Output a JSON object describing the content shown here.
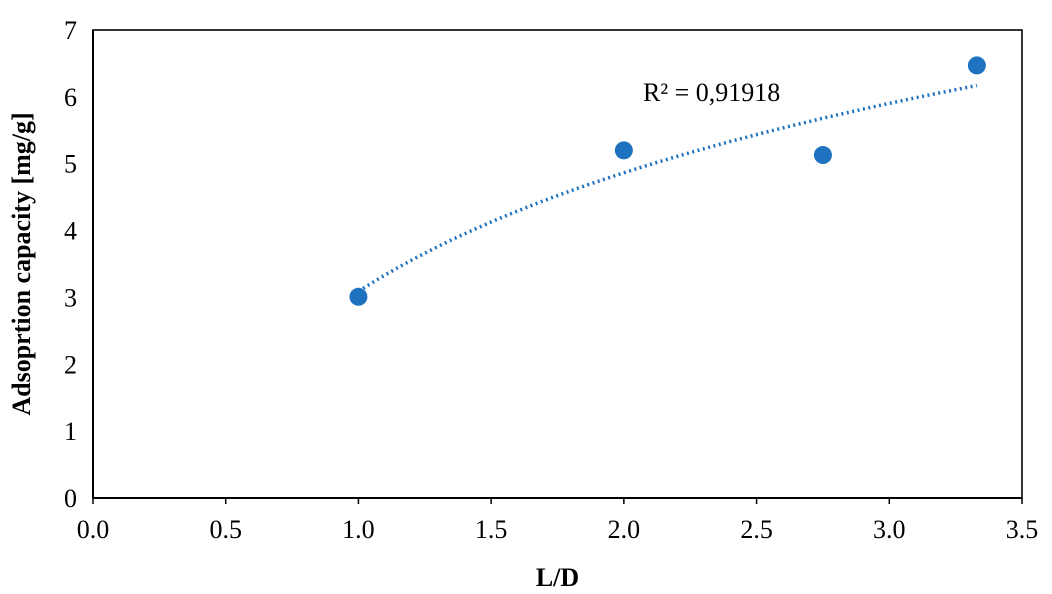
{
  "chart_data": {
    "type": "scatter",
    "title": "",
    "xlabel": "L/D",
    "ylabel": "Adsoprtion capacity [mg/g]",
    "xlim": [
      0.0,
      3.5
    ],
    "ylim": [
      0,
      7
    ],
    "x_ticks": [
      "0.0",
      "0.5",
      "1.0",
      "1.5",
      "2.0",
      "2.5",
      "3.0",
      "3.5"
    ],
    "y_ticks": [
      "0",
      "1",
      "2",
      "3",
      "4",
      "5",
      "6",
      "7"
    ],
    "grid": false,
    "series": [
      {
        "points": [
          {
            "x": 1.0,
            "y": 3.01
          },
          {
            "x": 2.0,
            "y": 5.2
          },
          {
            "x": 2.75,
            "y": 5.13
          },
          {
            "x": 3.33,
            "y": 6.47
          }
        ],
        "color": "#1f72bf"
      }
    ],
    "trendline": {
      "type": "logarithmic",
      "style": "dotted",
      "color": "#1f72bf",
      "x_range": [
        1.0,
        3.33
      ],
      "intercept": 3.09,
      "slope": 2.56,
      "r_squared_label": "R² = 0,91918"
    }
  }
}
